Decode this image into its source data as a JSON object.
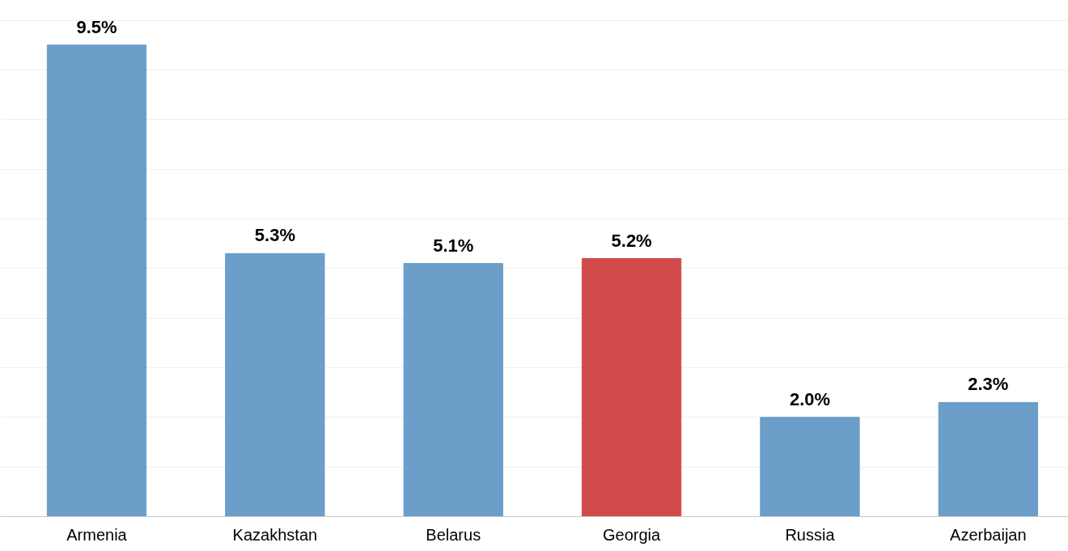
{
  "chart_data": {
    "type": "bar",
    "categories": [
      "Armenia",
      "Kazakhstan",
      "Belarus",
      "Georgia",
      "Russia",
      "Azerbaijan"
    ],
    "values": [
      9.5,
      5.3,
      5.1,
      5.2,
      2.0,
      2.3
    ],
    "colors": [
      "#6b9ec9",
      "#6b9ec9",
      "#6b9ec9",
      "#d24b4c",
      "#6b9ec9",
      "#6b9ec9"
    ],
    "value_labels": [
      "9.5%",
      "5.3%",
      "5.1%",
      "5.2%",
      "2.0%",
      "2.3%"
    ],
    "yticks": [
      {
        "value": 1,
        "label": null
      },
      {
        "value": 2,
        "label": null
      },
      {
        "value": 3,
        "label": null
      },
      {
        "value": 4,
        "label": null
      },
      {
        "value": 5,
        "label": null
      },
      {
        "value": 6,
        "label": null
      },
      {
        "value": 7,
        "label": null
      },
      {
        "value": 8,
        "label": null
      },
      {
        "value": 9,
        "label": null
      },
      {
        "value": 10,
        "label": null
      }
    ],
    "grid": "y",
    "tick_labels": "x"
  }
}
